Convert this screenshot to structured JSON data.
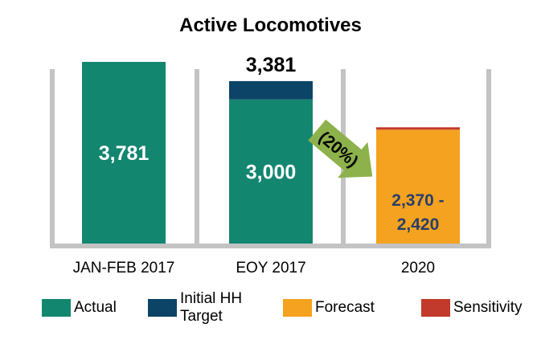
{
  "chart_data": {
    "type": "bar",
    "title": "Active Locomotives",
    "categories": [
      "JAN-FEB 2017",
      "EOY 2017",
      "2020"
    ],
    "series": [
      {
        "name": "Actual",
        "values": [
          3781,
          3000,
          null
        ]
      },
      {
        "name": "Initial HH Target",
        "values": [
          null,
          381,
          null
        ]
      },
      {
        "name": "Forecast",
        "values": [
          null,
          null,
          2370
        ]
      },
      {
        "name": "Sensitivity",
        "values": [
          null,
          null,
          50
        ]
      }
    ],
    "data_labels": {
      "bar0": "3,781",
      "bar1_actual": "3,000",
      "bar1_total": "3,381",
      "bar2_line1": "2,370 -",
      "bar2_line2": "2,420"
    },
    "annotation": "(20%)",
    "ylim": [
      0,
      4400
    ],
    "stacked": true,
    "grid": false,
    "legend_position": "bottom"
  },
  "legend": [
    {
      "label": "Actual",
      "color": "#138670"
    },
    {
      "label": "Initial HH Target",
      "color": "#0c4467"
    },
    {
      "label": "Forecast",
      "color": "#f4a21f"
    },
    {
      "label": "Sensitivity",
      "color": "#c23a2b"
    }
  ],
  "colors": {
    "actual": "#138670",
    "target": "#0c4467",
    "forecast": "#f4a21f",
    "sensitivity": "#c23a2b",
    "divider": "#c3c3c3",
    "arrow": "#8db24c",
    "forecast_text": "#2a3e6b"
  }
}
